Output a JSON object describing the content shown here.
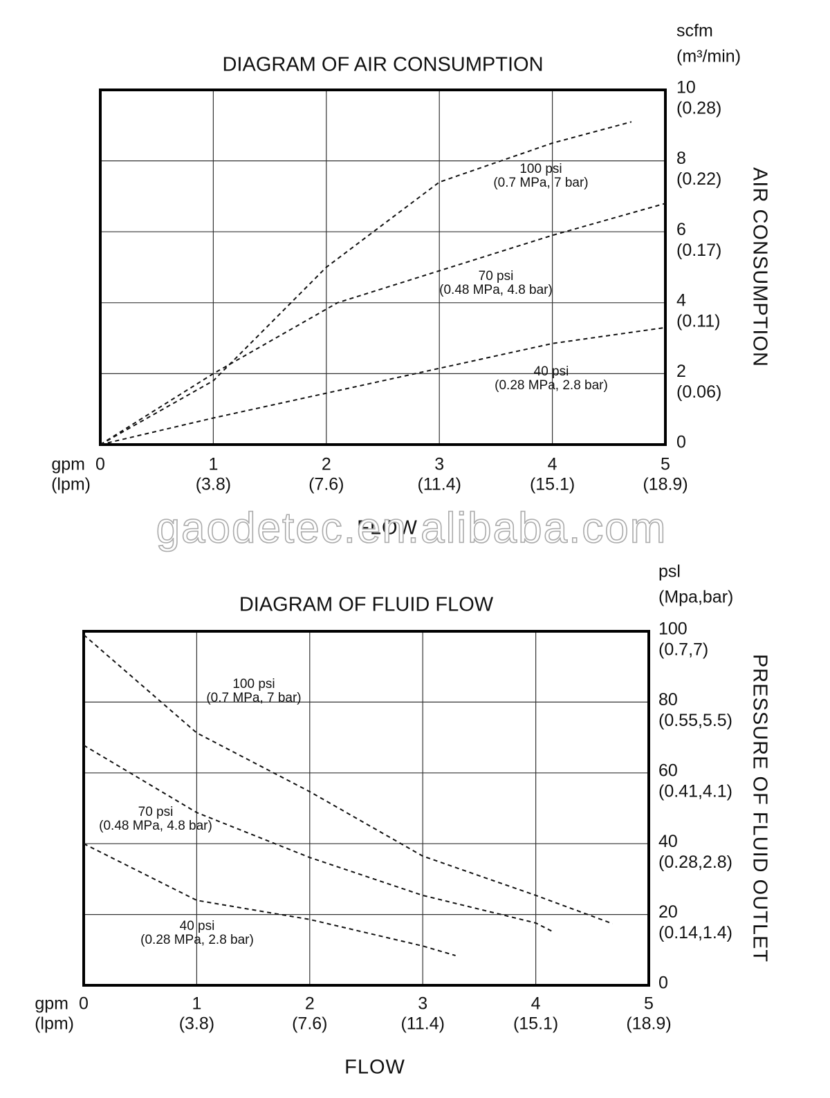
{
  "chart_data": [
    {
      "type": "line",
      "title": "DIAGRAM OF AIR CONSUMPTION",
      "x_label": "FLOW",
      "x_unit": "gpm",
      "x_unit2": "(lpm)",
      "y_label": "AIR CONSUMPTION",
      "y_unit": "scfm",
      "y_unit2": "(m³/min)",
      "xlim": [
        0,
        5
      ],
      "ylim": [
        0,
        10
      ],
      "xticks": [
        0,
        1,
        2,
        3,
        4,
        5
      ],
      "xticks_lpm": [
        {
          "value": 1,
          "label": "(3.8)"
        },
        {
          "value": 2,
          "label": "(7.6)"
        },
        {
          "value": 3,
          "label": "(11.4)"
        },
        {
          "value": 4,
          "label": "(15.1)"
        },
        {
          "value": 5,
          "label": "(18.9)"
        }
      ],
      "yticks": [
        0,
        2,
        4,
        6,
        8,
        10
      ],
      "yticks_m3": [
        {
          "value": 2,
          "label": "(0.06)"
        },
        {
          "value": 4,
          "label": "(0.11)"
        },
        {
          "value": 6,
          "label": "(0.17)"
        },
        {
          "value": 8,
          "label": "(0.22)"
        },
        {
          "value": 10,
          "label": "(0.28)"
        }
      ],
      "grid": true,
      "series": [
        {
          "name": "100 psi",
          "detail": "(0.7 MPa, 7 bar)",
          "color": "#111111",
          "x": [
            0,
            1,
            2,
            3,
            4,
            4.7
          ],
          "values": [
            0,
            1.8,
            5.0,
            7.4,
            8.5,
            9.1
          ]
        },
        {
          "name": "70 psi",
          "detail": "(0.48 MPa, 4.8 bar)",
          "color": "#111111",
          "x": [
            0,
            1,
            2.1,
            3,
            4,
            5
          ],
          "values": [
            0,
            2.0,
            4.0,
            4.9,
            5.9,
            6.8
          ]
        },
        {
          "name": "40 psi",
          "detail": "(0.28 MPa, 2.8 bar)",
          "color": "#111111",
          "x": [
            0,
            1,
            2,
            3,
            4,
            5
          ],
          "values": [
            0,
            0.75,
            1.45,
            2.15,
            2.85,
            3.3
          ]
        }
      ]
    },
    {
      "type": "line",
      "title": "DIAGRAM OF FLUID FLOW",
      "x_label": "FLOW",
      "x_unit": "gpm",
      "x_unit2": "(lpm)",
      "y_label": "PRESSURE OF FLUID OUTLET",
      "y_unit": "psl",
      "y_unit2": "(Mpa,bar)",
      "xlim": [
        0,
        5
      ],
      "ylim": [
        0,
        100
      ],
      "xticks": [
        0,
        1,
        2,
        3,
        4,
        5
      ],
      "xticks_lpm": [
        {
          "value": 1,
          "label": "(3.8)"
        },
        {
          "value": 2,
          "label": "(7.6)"
        },
        {
          "value": 3,
          "label": "(11.4)"
        },
        {
          "value": 4,
          "label": "(15.1)"
        },
        {
          "value": 5,
          "label": "(18.9)"
        }
      ],
      "yticks": [
        0,
        20,
        40,
        60,
        80,
        100
      ],
      "yticks_m3": [
        {
          "value": 20,
          "label": "(0.14,1.4)"
        },
        {
          "value": 40,
          "label": "(0.28,2.8)"
        },
        {
          "value": 60,
          "label": "(0.41,4.1)"
        },
        {
          "value": 80,
          "label": "(0.55,5.5)"
        },
        {
          "value": 100,
          "label": "(0.7,7)"
        }
      ],
      "grid": true,
      "series": [
        {
          "name": "100 psi",
          "detail": "(0.7 MPa, 7 bar)",
          "color": "#111111",
          "x": [
            0,
            1,
            2,
            3,
            4,
            4.68
          ],
          "values": [
            99,
            71.3,
            54.7,
            36.5,
            25.4,
            17.4
          ]
        },
        {
          "name": "70 psi",
          "detail": "(0.48 MPa, 4.8 bar)",
          "color": "#111111",
          "x": [
            0,
            1,
            2,
            3,
            4,
            4.16
          ],
          "values": [
            67.8,
            48.8,
            36.1,
            25.4,
            17.6,
            15
          ]
        },
        {
          "name": "40 psi",
          "detail": "(0.28 MPa, 2.8 bar)",
          "color": "#111111",
          "x": [
            0,
            1,
            2,
            3,
            3.29
          ],
          "values": [
            40,
            24,
            18.6,
            11.1,
            8.4
          ]
        }
      ]
    }
  ],
  "watermark": "gaodetec.en.alibaba.com"
}
